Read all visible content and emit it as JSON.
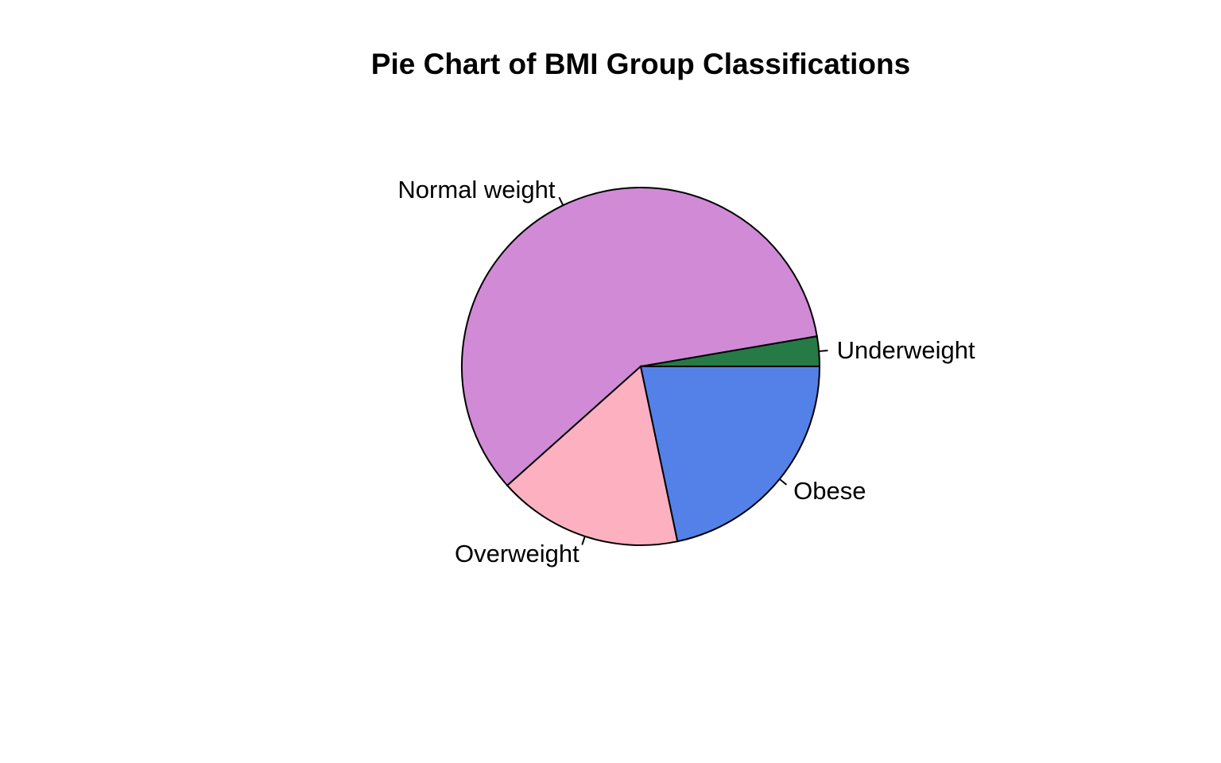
{
  "chart_data": {
    "type": "pie",
    "title": "Pie Chart of BMI Group Classifications",
    "start_angle_deg": 0,
    "direction": "counterclockwise",
    "slices": [
      {
        "label": "Underweight",
        "value": 2.7,
        "color": "#267A45"
      },
      {
        "label": "Normal weight",
        "value": 58.9,
        "color": "#D18AD5"
      },
      {
        "label": "Overweight",
        "value": 16.7,
        "color": "#FDB0C0"
      },
      {
        "label": "Obese",
        "value": 21.7,
        "color": "#5381E8"
      }
    ]
  }
}
